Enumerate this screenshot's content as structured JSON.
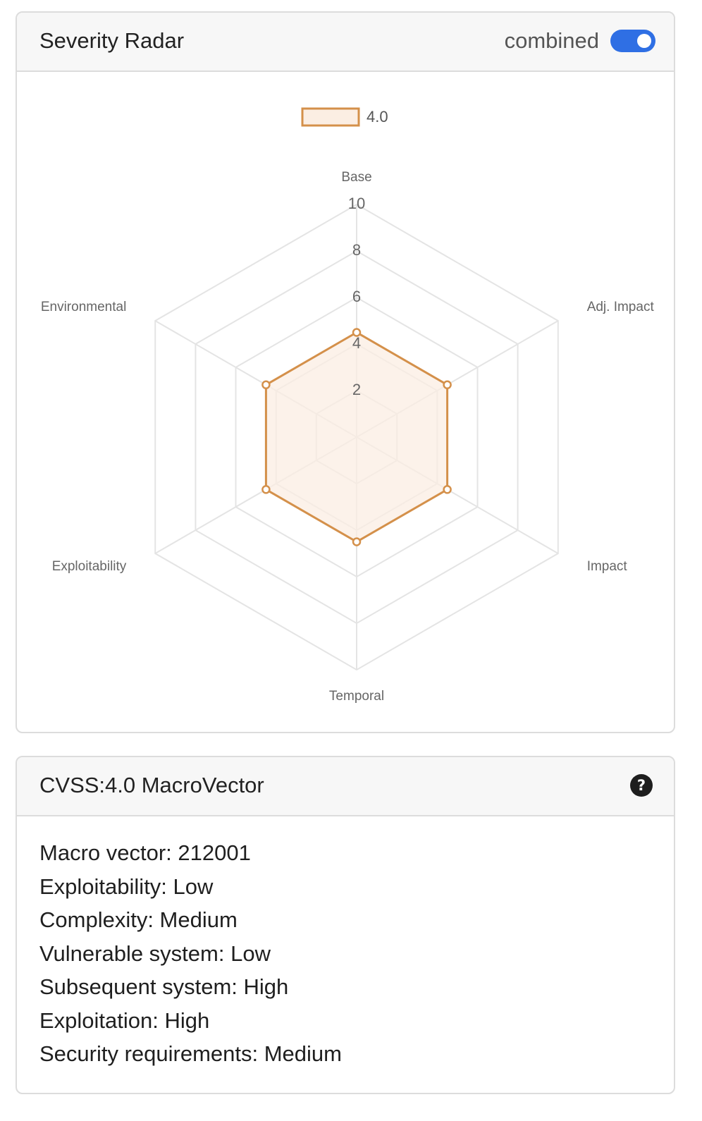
{
  "radar_card": {
    "title": "Severity Radar",
    "toggle": {
      "label": "combined",
      "on": true,
      "color": "#2f6fe4"
    }
  },
  "chart_data": {
    "type": "radar",
    "axes": [
      "Base",
      "Adj. Impact",
      "Impact",
      "Temporal",
      "Exploitability",
      "Environmental"
    ],
    "r_range": [
      0,
      10
    ],
    "r_ticks": [
      2,
      4,
      6,
      8,
      10
    ],
    "grid": true,
    "legend_position": "top",
    "series": [
      {
        "name": "4.0",
        "values": [
          4.5,
          4.5,
          4.5,
          4.5,
          4.5,
          4.5
        ],
        "color": "#d4904a",
        "fill": "#fbeee3"
      }
    ]
  },
  "macro_card": {
    "title": "CVSS:4.0 MacroVector",
    "help_icon": "?",
    "lines": [
      "Macro vector: 212001",
      "Exploitability: Low",
      "Complexity: Medium",
      "Vulnerable system: Low",
      "Subsequent system: High",
      "Exploitation: High",
      "Security requirements: Medium"
    ]
  }
}
